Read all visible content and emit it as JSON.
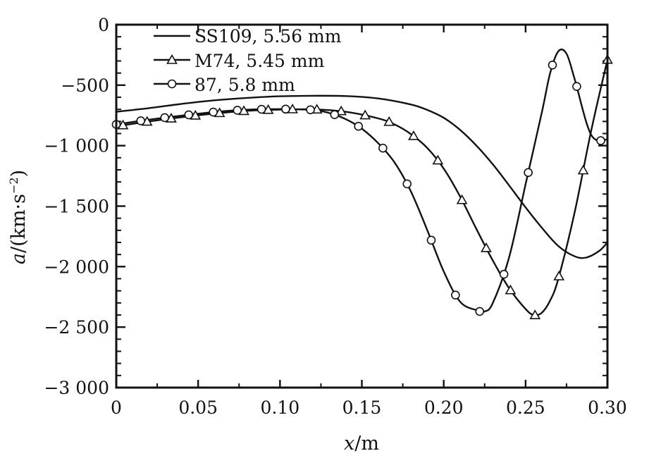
{
  "chart_data": {
    "type": "line",
    "xlabel_var": "x",
    "xlabel_unit": "/m",
    "ylabel_var": "a",
    "ylabel_unit_pre": "/(km·s",
    "ylabel_unit_exp": "−2",
    "ylabel_unit_post": ")",
    "xlim": [
      0,
      0.3
    ],
    "ylim": [
      -3000,
      0
    ],
    "x_ticks": [
      {
        "value": 0,
        "label": "0"
      },
      {
        "value": 0.05,
        "label": "0.05"
      },
      {
        "value": 0.1,
        "label": "0.10"
      },
      {
        "value": 0.15,
        "label": "0.15"
      },
      {
        "value": 0.2,
        "label": "0.20"
      },
      {
        "value": 0.25,
        "label": "0.25"
      },
      {
        "value": 0.3,
        "label": "0.30"
      }
    ],
    "y_ticks": [
      {
        "value": 0,
        "label": "0"
      },
      {
        "value": -500,
        "label": "−500"
      },
      {
        "value": -1000,
        "label": "−1 000"
      },
      {
        "value": -1500,
        "label": "−1 500"
      },
      {
        "value": -2000,
        "label": "−2 000"
      },
      {
        "value": -2500,
        "label": "−2 500"
      },
      {
        "value": -3000,
        "label": "−3 000"
      }
    ],
    "series": [
      {
        "name": "SS109, 5.56 mm",
        "marker": "none",
        "x": [
          0,
          0.02,
          0.04,
          0.06,
          0.08,
          0.1,
          0.12,
          0.14,
          0.16,
          0.18,
          0.19,
          0.2,
          0.21,
          0.22,
          0.23,
          0.24,
          0.25,
          0.26,
          0.27,
          0.28,
          0.287,
          0.295,
          0.3
        ],
        "y": [
          -720,
          -690,
          -655,
          -625,
          -605,
          -592,
          -588,
          -590,
          -610,
          -660,
          -705,
          -770,
          -870,
          -1000,
          -1155,
          -1330,
          -1510,
          -1680,
          -1830,
          -1915,
          -1925,
          -1870,
          -1800
        ]
      },
      {
        "name": "M74, 5.45 mm",
        "marker": "triangle",
        "x": [
          0,
          0.02,
          0.04,
          0.06,
          0.08,
          0.1,
          0.12,
          0.14,
          0.16,
          0.17,
          0.18,
          0.19,
          0.2,
          0.21,
          0.22,
          0.23,
          0.24,
          0.25,
          0.255,
          0.26,
          0.265,
          0.27,
          0.28,
          0.29,
          0.3
        ],
        "y": [
          -840,
          -800,
          -765,
          -735,
          -712,
          -702,
          -700,
          -720,
          -775,
          -825,
          -905,
          -1020,
          -1190,
          -1420,
          -1690,
          -1950,
          -2180,
          -2350,
          -2400,
          -2380,
          -2280,
          -2100,
          -1550,
          -880,
          -290
        ]
      },
      {
        "name": "87, 5.8 mm",
        "marker": "circle",
        "x": [
          0,
          0.02,
          0.04,
          0.06,
          0.08,
          0.1,
          0.12,
          0.13,
          0.14,
          0.15,
          0.16,
          0.17,
          0.18,
          0.19,
          0.2,
          0.21,
          0.22,
          0.225,
          0.23,
          0.24,
          0.25,
          0.26,
          0.265,
          0.27,
          0.275,
          0.28,
          0.29,
          0.3
        ],
        "y": [
          -825,
          -785,
          -752,
          -722,
          -703,
          -698,
          -705,
          -730,
          -780,
          -860,
          -980,
          -1140,
          -1380,
          -1700,
          -2040,
          -2290,
          -2360,
          -2370,
          -2300,
          -1920,
          -1320,
          -720,
          -400,
          -220,
          -240,
          -450,
          -910,
          -950
        ]
      }
    ],
    "legend_position": "top-left"
  }
}
